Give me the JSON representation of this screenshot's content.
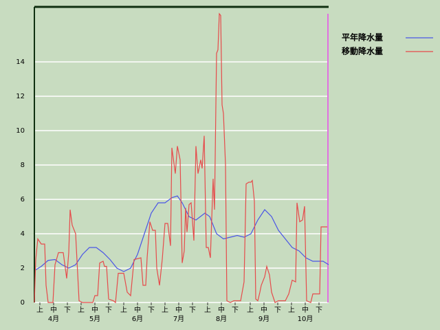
{
  "chart_data": {
    "type": "line",
    "xlim": [
      0,
      214
    ],
    "ylim": [
      0,
      17.2
    ],
    "yticks": [
      0,
      2,
      4,
      6,
      8,
      10,
      12,
      14
    ],
    "xticks": [
      {
        "value": 4,
        "label": "上"
      },
      {
        "value": 14,
        "label": "中"
      },
      {
        "value": 24,
        "label": "下"
      },
      {
        "value": 34,
        "label": "上"
      },
      {
        "value": 44,
        "label": "中"
      },
      {
        "value": 54,
        "label": "下"
      },
      {
        "value": 65,
        "label": "上"
      },
      {
        "value": 75,
        "label": "中"
      },
      {
        "value": 85,
        "label": "下"
      },
      {
        "value": 95,
        "label": "上"
      },
      {
        "value": 105,
        "label": "中"
      },
      {
        "value": 115,
        "label": "下"
      },
      {
        "value": 126,
        "label": "上"
      },
      {
        "value": 136,
        "label": "中"
      },
      {
        "value": 146,
        "label": "下"
      },
      {
        "value": 157,
        "label": "上"
      },
      {
        "value": 167,
        "label": "中"
      },
      {
        "value": 177,
        "label": "下"
      },
      {
        "value": 187,
        "label": "上"
      },
      {
        "value": 197,
        "label": "中"
      },
      {
        "value": 207,
        "label": "下"
      }
    ],
    "month_labels": [
      {
        "value": 14,
        "label": "4月"
      },
      {
        "value": 44,
        "label": "5月"
      },
      {
        "value": 75,
        "label": "6月"
      },
      {
        "value": 105,
        "label": "7月"
      },
      {
        "value": 136,
        "label": "8月"
      },
      {
        "value": 167,
        "label": "9月"
      },
      {
        "value": 197,
        "label": "10月"
      }
    ],
    "grid": true,
    "marker_line": {
      "x": 213.5,
      "color": "#e070e0"
    },
    "series": [
      {
        "name": "平年降水量",
        "color": "#4a55e6",
        "x": [
          1,
          5,
          10,
          15,
          20,
          25,
          30,
          35,
          40,
          45,
          50,
          55,
          60,
          65,
          70,
          75,
          80,
          85,
          90,
          95,
          100,
          104,
          107.5,
          112.5,
          117.5,
          124,
          127.5,
          132.5,
          137.5,
          142.5,
          147.5,
          152.5,
          157.5,
          162.5,
          167.5,
          172.5,
          177.5,
          182.5,
          187.5,
          192.5,
          197.5,
          202.5,
          210,
          214
        ],
        "values": [
          1.9,
          2.1,
          2.45,
          2.5,
          2.2,
          2.0,
          2.2,
          2.8,
          3.2,
          3.2,
          2.9,
          2.5,
          2.0,
          1.8,
          2.0,
          2.8,
          4.0,
          5.2,
          5.8,
          5.8,
          6.1,
          6.2,
          5.8,
          5.0,
          4.8,
          5.2,
          5.0,
          4.0,
          3.7,
          3.8,
          3.9,
          3.8,
          4.0,
          4.8,
          5.4,
          5.0,
          4.2,
          3.7,
          3.2,
          3.0,
          2.6,
          2.4,
          2.4,
          2.2
        ]
      },
      {
        "name": "移動降水量",
        "color": "#e64a4a",
        "x": [
          0,
          1,
          2.5,
          5,
          7.5,
          8.5,
          10,
          13.5,
          15,
          17.5,
          21,
          22.5,
          23.5,
          25,
          26,
          27.5,
          30,
          32.5,
          35,
          42.5,
          44,
          46,
          47.5,
          50,
          51,
          52.5,
          54,
          57.5,
          59,
          61,
          65,
          67.5,
          70,
          72.5,
          77.5,
          79,
          81,
          82,
          84,
          86,
          88,
          89,
          91,
          93,
          95,
          97,
          99,
          100,
          102.5,
          104,
          106,
          107.5,
          109,
          110,
          111,
          112.5,
          114,
          116,
          117.5,
          119,
          121,
          122,
          123.5,
          125,
          126.5,
          128,
          130,
          131,
          132.5,
          133.5,
          134.5,
          135.5,
          136.5,
          137.5,
          139,
          140,
          142.5,
          145,
          150,
          152.5,
          154,
          156,
          157.5,
          158.5,
          160,
          161,
          162.5,
          164,
          165,
          167.5,
          169,
          171,
          172.5,
          175,
          177.5,
          182.5,
          185,
          187.5,
          190,
          191,
          193,
          195,
          196.5,
          198,
          201,
          202.5,
          207.5,
          208.5,
          213
        ],
        "values": [
          0,
          2.5,
          3.7,
          3.4,
          3.4,
          1.0,
          0,
          0,
          2.2,
          2.9,
          2.9,
          2.0,
          1.4,
          2.9,
          5.4,
          4.5,
          4.0,
          0.1,
          0,
          0,
          0.4,
          0.4,
          2.3,
          2.4,
          2.1,
          2.1,
          0.2,
          0.1,
          0,
          1.7,
          1.7,
          0.6,
          0.4,
          2.5,
          2.6,
          1.0,
          1.0,
          2.6,
          4.7,
          4.2,
          4.2,
          2.0,
          1.0,
          2.5,
          4.6,
          4.6,
          3.3,
          9.0,
          7.5,
          9.1,
          8.3,
          2.3,
          3.0,
          5.5,
          4.1,
          5.7,
          5.8,
          3.6,
          9.1,
          7.5,
          8.3,
          7.8,
          9.7,
          3.2,
          3.2,
          2.6,
          7.2,
          5.4,
          14.5,
          14.7,
          16.8,
          16.7,
          11.5,
          11.0,
          8.0,
          0.1,
          0,
          0.1,
          0.1,
          1.2,
          6.9,
          7.0,
          7.0,
          7.1,
          5.9,
          0.2,
          0.1,
          0.6,
          1.0,
          1.5,
          2.1,
          1.6,
          0.6,
          0,
          0.1,
          0.1,
          0.5,
          1.3,
          1.2,
          5.8,
          4.7,
          4.8,
          5.6,
          0.1,
          0,
          0.5,
          0.5,
          4.4,
          4.4
        ]
      }
    ]
  }
}
